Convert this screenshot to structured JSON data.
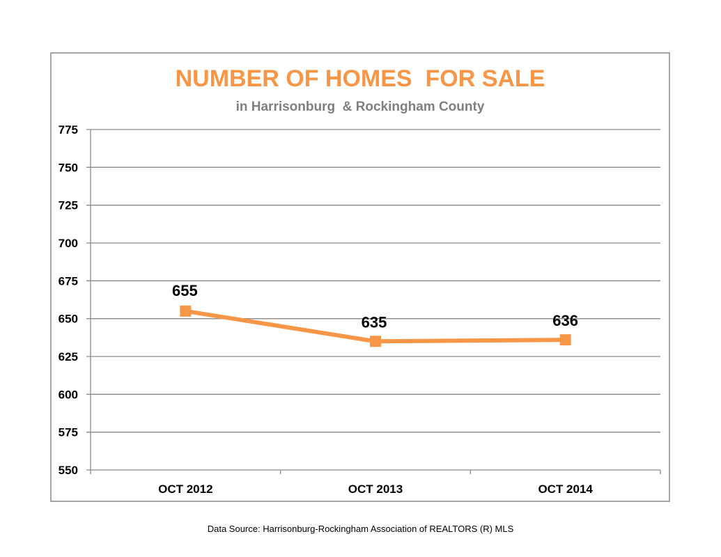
{
  "chart_data": {
    "type": "line",
    "title": "NUMBER OF HOMES  FOR SALE",
    "subtitle": "in Harrisonburg  & Rockingham County",
    "categories": [
      "OCT 2012",
      "OCT 2013",
      "OCT 2014"
    ],
    "series": [
      {
        "values": [
          655,
          635,
          636
        ],
        "color": "#f79646"
      }
    ],
    "data_labels": [
      "655",
      "635",
      "636"
    ],
    "ylim": [
      550,
      775
    ],
    "yticks": [
      550,
      575,
      600,
      625,
      650,
      675,
      700,
      725,
      750,
      775
    ],
    "grid": true,
    "legend": "none"
  },
  "source_note": "Data Source: Harrisonburg-Rockingham Association of REALTORS (R) MLS",
  "colors": {
    "title": "#f79646",
    "subtitle": "#7f7f7f",
    "grid": "#898989",
    "frame": "#a6a6a6"
  }
}
